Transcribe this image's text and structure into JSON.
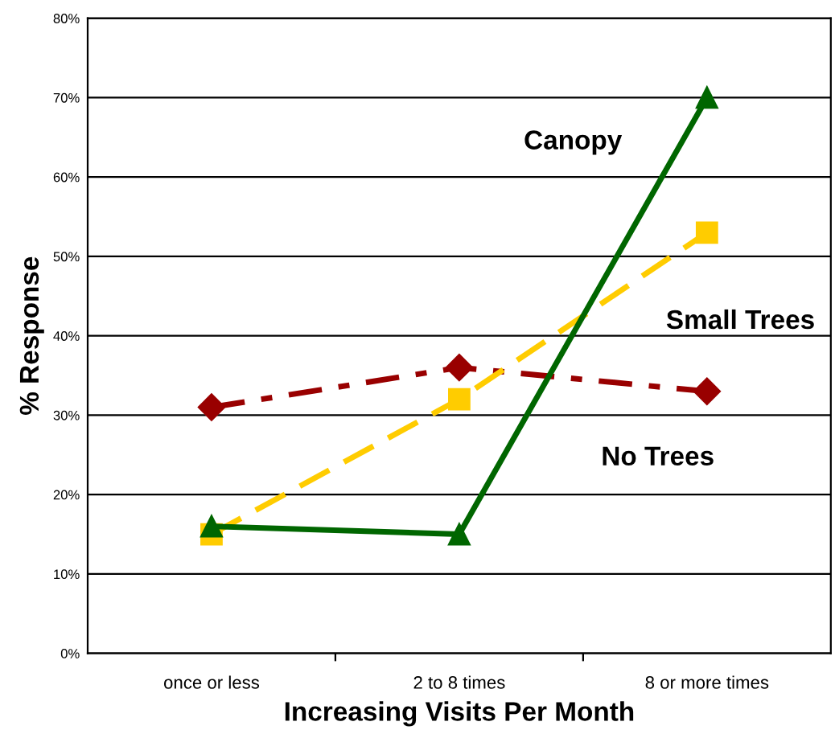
{
  "chart_data": {
    "type": "line",
    "xlabel": "Increasing Visits Per Month",
    "ylabel": "% Response",
    "categories": [
      "once or less",
      "2 to 8 times",
      "8 or more times"
    ],
    "series": [
      {
        "name": "Canopy",
        "color": "#006600",
        "values": [
          16,
          15,
          70
        ],
        "marker": "triangle",
        "line_style": "solid"
      },
      {
        "name": "Small Trees",
        "color": "#ffcc00",
        "values": [
          15,
          32,
          53
        ],
        "marker": "square",
        "line_style": "dashed"
      },
      {
        "name": "No Trees",
        "color": "#990000",
        "values": [
          31,
          36,
          33
        ],
        "marker": "diamond",
        "line_style": "dashed"
      }
    ],
    "ylim": [
      0,
      80
    ],
    "yticks": [
      {
        "value": 0,
        "label": "0%"
      },
      {
        "value": 10,
        "label": "10%"
      },
      {
        "value": 20,
        "label": "20%"
      },
      {
        "value": 30,
        "label": "30%"
      },
      {
        "value": 40,
        "label": "40%"
      },
      {
        "value": 50,
        "label": "50%"
      },
      {
        "value": 60,
        "label": "60%"
      },
      {
        "value": 70,
        "label": "70%"
      },
      {
        "value": 80,
        "label": "80%"
      }
    ],
    "grid": "y",
    "legend": false
  }
}
